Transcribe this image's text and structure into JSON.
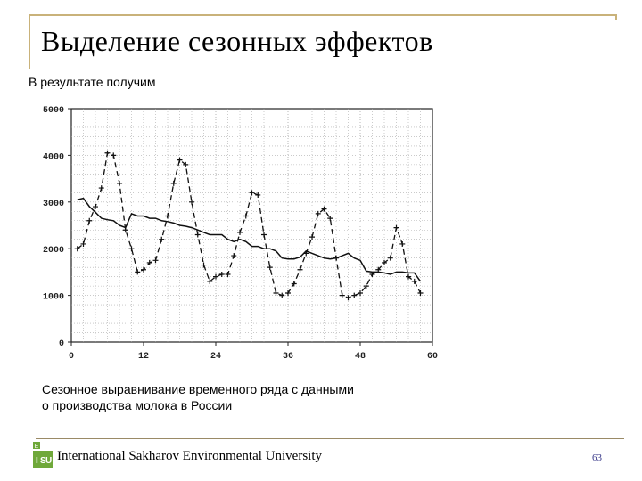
{
  "slide": {
    "title": "Выделение сезонных эффектов",
    "subtitle": "В результате получим",
    "caption_line1": "Сезонное выравнивание временного ряда с данными",
    "caption_line2": "о производства молока в России",
    "footer_org": "International Sakharov Environmental University",
    "page_number": "63",
    "logo_letters": [
      "I",
      "S",
      "E",
      "U"
    ],
    "accent_color": "#c9b27a",
    "logo_color": "#6fa83a"
  },
  "chart_data": {
    "type": "line",
    "title": "",
    "xlabel": "",
    "ylabel": "",
    "xlim": [
      0,
      60
    ],
    "ylim": [
      0,
      5000
    ],
    "grid": true,
    "x_ticks": [
      0,
      12,
      24,
      36,
      48,
      60
    ],
    "x_tick_labels": [
      "0",
      "12",
      "24",
      "36",
      "48",
      "60"
    ],
    "y_ticks": [
      0,
      1000,
      2000,
      3000,
      4000,
      5000
    ],
    "y_tick_labels": [
      "0",
      "1000",
      "2000",
      "3000",
      "4000",
      "5000"
    ],
    "series": [
      {
        "style": "dashed-with-plus-markers",
        "x": [
          1,
          2,
          3,
          4,
          5,
          6,
          7,
          8,
          9,
          10,
          11,
          12,
          13,
          14,
          15,
          16,
          17,
          18,
          19,
          20,
          21,
          22,
          23,
          24,
          25,
          26,
          27,
          28,
          29,
          30,
          31,
          32,
          33,
          34,
          35,
          36,
          37,
          38,
          39,
          40,
          41,
          42,
          43,
          44,
          45,
          46,
          47,
          48,
          49,
          50,
          51,
          52,
          53,
          54,
          55,
          56,
          57,
          58
        ],
        "values": [
          2000,
          2100,
          2600,
          2900,
          3300,
          4050,
          4000,
          3400,
          2400,
          2000,
          1500,
          1550,
          1700,
          1750,
          2200,
          2700,
          3400,
          3900,
          3800,
          3000,
          2300,
          1650,
          1300,
          1400,
          1450,
          1450,
          1850,
          2350,
          2700,
          3200,
          3150,
          2300,
          1600,
          1050,
          1000,
          1050,
          1250,
          1550,
          1900,
          2250,
          2750,
          2850,
          2650,
          1800,
          1000,
          950,
          1000,
          1050,
          1200,
          1450,
          1550,
          1700,
          1800,
          2450,
          2100,
          1400,
          1300,
          1050
        ]
      },
      {
        "style": "solid",
        "x": [
          1,
          2,
          3,
          4,
          5,
          6,
          7,
          8,
          9,
          10,
          11,
          12,
          13,
          14,
          15,
          16,
          17,
          18,
          19,
          20,
          21,
          22,
          23,
          24,
          25,
          26,
          27,
          28,
          29,
          30,
          31,
          32,
          33,
          34,
          35,
          36,
          37,
          38,
          39,
          40,
          41,
          42,
          43,
          44,
          45,
          46,
          47,
          48,
          49,
          50,
          51,
          52,
          53,
          54,
          55,
          56,
          57,
          58
        ],
        "values": [
          3050,
          3080,
          2900,
          2780,
          2650,
          2620,
          2600,
          2500,
          2450,
          2750,
          2700,
          2700,
          2650,
          2650,
          2600,
          2580,
          2550,
          2500,
          2480,
          2450,
          2400,
          2350,
          2300,
          2300,
          2300,
          2200,
          2150,
          2200,
          2150,
          2050,
          2050,
          2000,
          2000,
          1950,
          1800,
          1780,
          1780,
          1820,
          1950,
          1900,
          1850,
          1800,
          1780,
          1800,
          1850,
          1900,
          1800,
          1750,
          1520,
          1500,
          1500,
          1480,
          1450,
          1500,
          1500,
          1480,
          1480,
          1300
        ]
      }
    ]
  }
}
